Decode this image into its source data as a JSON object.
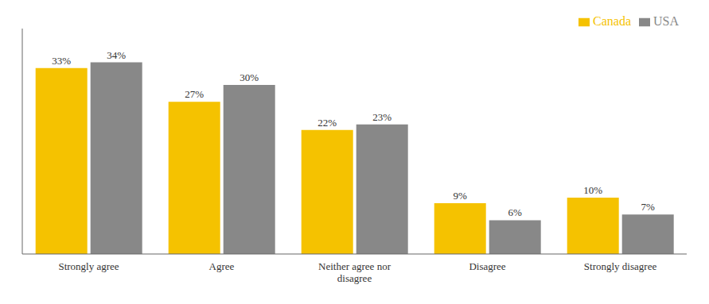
{
  "chart_data": {
    "type": "bar",
    "categories": [
      "Strongly agree",
      "Agree",
      "Neither agree nor\ndisagree",
      "Disagree",
      "Strongly disagree"
    ],
    "series": [
      {
        "name": "Canada",
        "color": "#F5C200",
        "values": [
          33,
          27,
          22,
          9,
          10
        ],
        "value_labels": [
          "33%",
          "27%",
          "22%",
          "9%",
          "10%"
        ]
      },
      {
        "name": "USA",
        "color": "#888888",
        "values": [
          34,
          30,
          23,
          6,
          7
        ],
        "value_labels": [
          "34%",
          "30%",
          "23%",
          "6%",
          "7%"
        ]
      }
    ],
    "ylim": [
      0,
      40
    ],
    "grid": false,
    "legend": "upper right",
    "data_labels": true,
    "tick_labels": "x"
  }
}
